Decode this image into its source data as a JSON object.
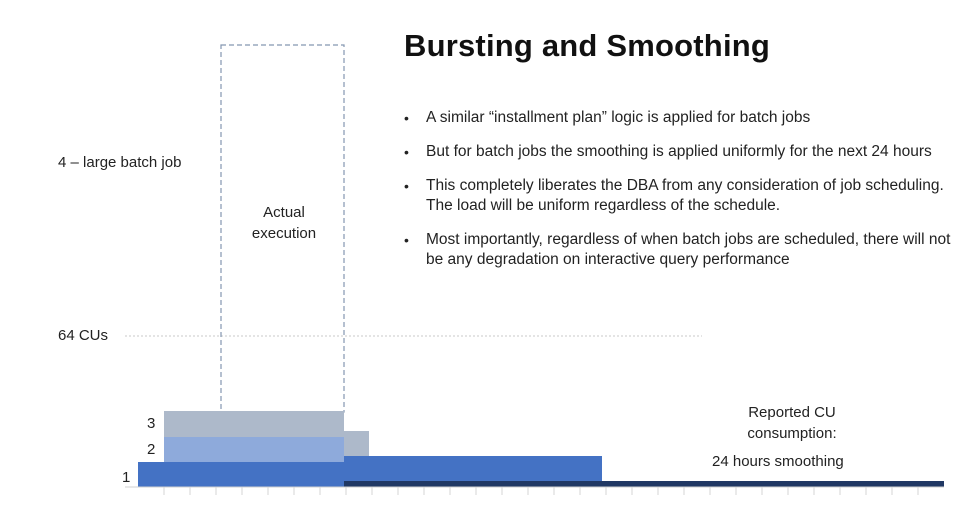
{
  "title": "Bursting and Smoothing",
  "bullets": [
    "A similar “installment plan” logic is applied for batch jobs",
    "But for batch jobs the smoothing is applied uniformly for the next 24 hours",
    "This completely liberates the DBA from any consideration of job scheduling. The load will be uniform regardless of the schedule.",
    "Most importantly, regardless of when batch jobs are scheduled, there will not be any degradation on interactive query performance"
  ],
  "bullet_symbol": "•",
  "labels": {
    "large_batch_job": "4 – large batch job",
    "actual_execution": "Actual execution",
    "capacity": "64 CUs",
    "level_1": "1",
    "level_2": "2",
    "level_3": "3",
    "reported_cu": "Reported CU consumption:",
    "smoothing": "24 hours smoothing"
  },
  "colors": {
    "job1": "#4472c4",
    "job2": "#8eaadb",
    "job3": "#adb9ca",
    "smoothed": "#203864",
    "dashed": "#8496b0",
    "dotted": "#bfbfbf"
  }
}
